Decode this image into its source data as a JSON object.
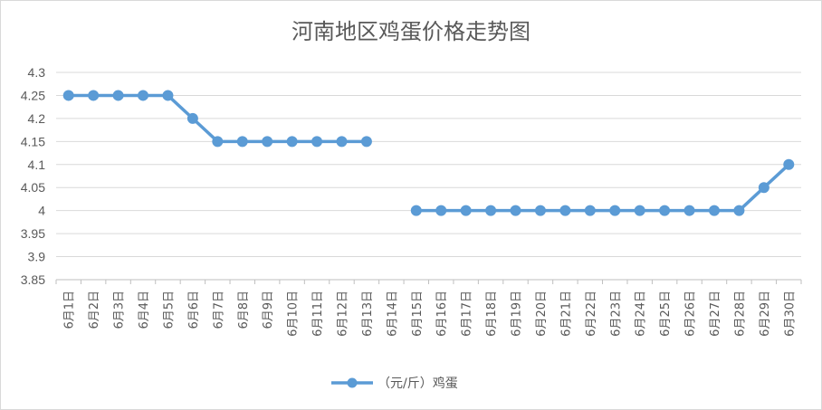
{
  "chart_data": {
    "type": "line",
    "title": "河南地区鸡蛋价格走势图",
    "categories": [
      "6月1日",
      "6月2日",
      "6月3日",
      "6月4日",
      "6月5日",
      "6月6日",
      "6月7日",
      "6月8日",
      "6月9日",
      "6月10日",
      "6月11日",
      "6月12日",
      "6月13日",
      "6月14日",
      "6月15日",
      "6月16日",
      "6月17日",
      "6月18日",
      "6月19日",
      "6月20日",
      "6月21日",
      "6月22日",
      "6月23日",
      "6月24日",
      "6月25日",
      "6月26日",
      "6月27日",
      "6月28日",
      "6月29日",
      "6月30日"
    ],
    "series": [
      {
        "name": "（元/斤）鸡蛋",
        "values": [
          4.25,
          4.25,
          4.25,
          4.25,
          4.25,
          4.2,
          4.15,
          4.15,
          4.15,
          4.15,
          4.15,
          4.15,
          4.15,
          null,
          4.0,
          4.0,
          4.0,
          4.0,
          4.0,
          4.0,
          4.0,
          4.0,
          4.0,
          4.0,
          4.0,
          4.0,
          4.0,
          4.0,
          4.05,
          4.1
        ],
        "color": "#5b9bd5"
      }
    ],
    "ylim": [
      3.85,
      4.3
    ],
    "yticks": [
      "3.85",
      "3.9",
      "3.95",
      "4",
      "4.05",
      "4.1",
      "4.15",
      "4.2",
      "4.25",
      "4.3"
    ],
    "xlabel": "",
    "ylabel": "",
    "grid": true,
    "legend": "bottom"
  }
}
